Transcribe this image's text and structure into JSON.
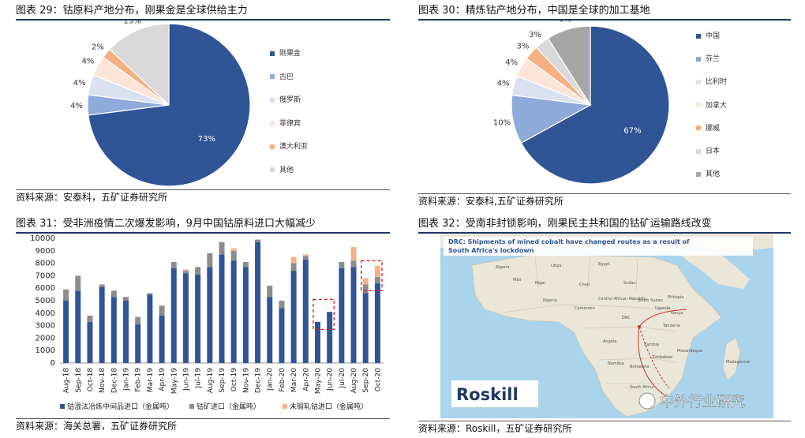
{
  "panels": {
    "fig29": {
      "title": "图表 29：钴原料产地分布，刚果金是全球供给主力",
      "source": "资料来源：安泰科，五矿证券研究所"
    },
    "fig30": {
      "title": "图表 30：精炼钴产地分布，中国是全球的加工基地",
      "source": "资料来源：安泰科,五矿证券研究所"
    },
    "fig31": {
      "title": "图表 31：受非洲疫情二次爆发影响，9月中国钴原料进口大幅减少",
      "source": "资料来源：海关总署，五矿证券研究所"
    },
    "fig32": {
      "title": "图表 32：受南非封锁影响，刚果民主共和国的钴矿运输路线改变",
      "source": "资料来源：Roskill，五矿证券研究所"
    }
  },
  "chart_data": [
    {
      "type": "pie",
      "labels": [
        "刚果金",
        "古巴",
        "俄罗斯",
        "菲律宾",
        "澳大利亚",
        "其他"
      ],
      "values": [
        73,
        4,
        4,
        4,
        2,
        13
      ],
      "value_labels": [
        "73%",
        "4%",
        "4%",
        "4%",
        "2%",
        "13%"
      ],
      "colors": [
        "#2f5597",
        "#8eaadb",
        "#d9e1f2",
        "#fce4d6",
        "#f4b183",
        "#d9d9d9"
      ],
      "legend_position": "right"
    },
    {
      "type": "pie",
      "labels": [
        "中国",
        "芬兰",
        "比利时",
        "加拿大",
        "挪威",
        "日本",
        "其他"
      ],
      "values": [
        67,
        10,
        4,
        4,
        3,
        3,
        9
      ],
      "value_labels": [
        "67%",
        "10%",
        "4%",
        "4%",
        "3%",
        "3%",
        "9%"
      ],
      "colors": [
        "#2f5597",
        "#8eaadb",
        "#d9e1f2",
        "#fce4d6",
        "#f4b183",
        "#d9d9d9",
        "#a6a6a6"
      ],
      "legend_position": "right"
    },
    {
      "type": "bar",
      "stacked": true,
      "categories": [
        "Aug-18",
        "Sep-18",
        "Oct-18",
        "Nov-18",
        "Dec-18",
        "Jan-19",
        "Feb-19",
        "Mar-19",
        "Apr-19",
        "May-19",
        "Jun-19",
        "Jul-19",
        "Aug-19",
        "Sep-19",
        "Oct-19",
        "Nov-19",
        "Dec-19",
        "Jan-20",
        "Feb-20",
        "Mar-20",
        "Apr-20",
        "May-20",
        "Jun-20",
        "Jul-20",
        "Aug-20",
        "Sep-20",
        "Oct-20"
      ],
      "series": [
        {
          "name": "钴湿法冶炼中间品进口（金属吨）",
          "color": "#2f5597",
          "values": [
            5000,
            5800,
            3300,
            6100,
            5300,
            5000,
            3100,
            5500,
            3800,
            7600,
            7200,
            7100,
            7700,
            8700,
            8200,
            7700,
            9700,
            5300,
            4400,
            7400,
            8300,
            3300,
            4100,
            7600,
            7700,
            5600,
            6400
          ]
        },
        {
          "name": "钴矿进口（金属吨）",
          "color": "#8c8c8c",
          "values": [
            900,
            1200,
            500,
            200,
            500,
            300,
            600,
            100,
            800,
            500,
            200,
            600,
            1100,
            1000,
            800,
            400,
            200,
            900,
            600,
            600,
            300,
            0,
            0,
            500,
            500,
            700,
            500
          ]
        },
        {
          "name": "未锻轧钴进口（金属吨）",
          "color": "#f4b183",
          "values": [
            0,
            0,
            0,
            0,
            0,
            0,
            0,
            0,
            0,
            0,
            100,
            0,
            0,
            0,
            200,
            0,
            0,
            0,
            0,
            500,
            100,
            0,
            0,
            0,
            1100,
            500,
            900
          ]
        }
      ],
      "ylim": [
        0,
        10000
      ],
      "yticks": [
        "0",
        "1000",
        "2000",
        "3000",
        "4000",
        "5000",
        "6000",
        "7000",
        "8000",
        "9000",
        "10000"
      ],
      "grid": false,
      "legend_position": "bottom"
    }
  ],
  "map": {
    "header_line1": "DRC: Shipments of mined cobalt have changed routes as a result of",
    "header_line2": "South Africa's lockdown",
    "logo": "Roskill",
    "watermark": "中外行业研究",
    "places": [
      "Egypt",
      "Libya",
      "Algeria",
      "Niger",
      "Chad",
      "Sudan",
      "Ethiopia",
      "Kenya",
      "Nigeria",
      "Cameroon",
      "Central African Republic",
      "South Sudan",
      "DRC",
      "Uganda",
      "Tanzania",
      "Angola",
      "Zambia",
      "Zimbabwe",
      "Mozambique",
      "Namibia",
      "Botswana",
      "South Africa",
      "Madagascar",
      "Mali"
    ]
  }
}
